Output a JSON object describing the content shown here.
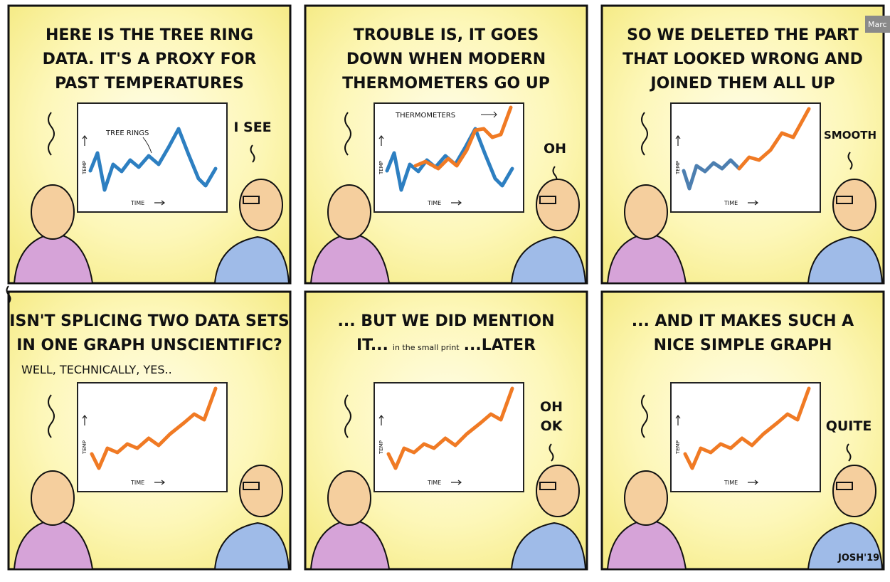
{
  "corner_tag": "Marc",
  "panels": [
    {
      "caption": [
        "HERE IS THE TREE RING",
        "DATA. IT'S A PROXY FOR",
        "PAST TEMPERATURES"
      ],
      "speech": [
        "I SEE"
      ],
      "chart": {
        "y_label": "TEMP",
        "x_label": "TIME",
        "annotation": "TREE RINGS"
      }
    },
    {
      "caption": [
        "TROUBLE IS, IT GOES",
        "DOWN WHEN MODERN",
        "THERMOMETERS GO UP"
      ],
      "speech": [
        "OH"
      ],
      "chart": {
        "y_label": "TEMP",
        "x_label": "TIME",
        "annotation": "THERMOMETERS"
      }
    },
    {
      "caption": [
        "SO WE DELETED THE PART",
        "THAT LOOKED WRONG AND",
        "JOINED THEM ALL UP"
      ],
      "speech": [
        "SMOOTH"
      ],
      "chart": {
        "y_label": "TEMP",
        "x_label": "TIME"
      }
    },
    {
      "caption": [
        "ISN'T SPLICING TWO DATA SETS",
        "IN ONE GRAPH UNSCIENTIFIC?"
      ],
      "reply": "WELL, TECHNICALLY, YES..",
      "speech": [],
      "chart": {
        "y_label": "TEMP",
        "x_label": "TIME"
      }
    },
    {
      "caption": [
        "... BUT WE DID MENTION"
      ],
      "caption_parts": [
        "IT...",
        "in the small print",
        "...LATER"
      ],
      "speech": [
        "OH",
        "OK"
      ],
      "chart": {
        "y_label": "TEMP",
        "x_label": "TIME"
      }
    },
    {
      "caption": [
        "... AND IT MAKES SUCH A",
        "NICE SIMPLE GRAPH"
      ],
      "speech": [
        "QUITE"
      ],
      "chart": {
        "y_label": "TEMP",
        "x_label": "TIME"
      }
    }
  ],
  "signature": "JOSH'19"
}
